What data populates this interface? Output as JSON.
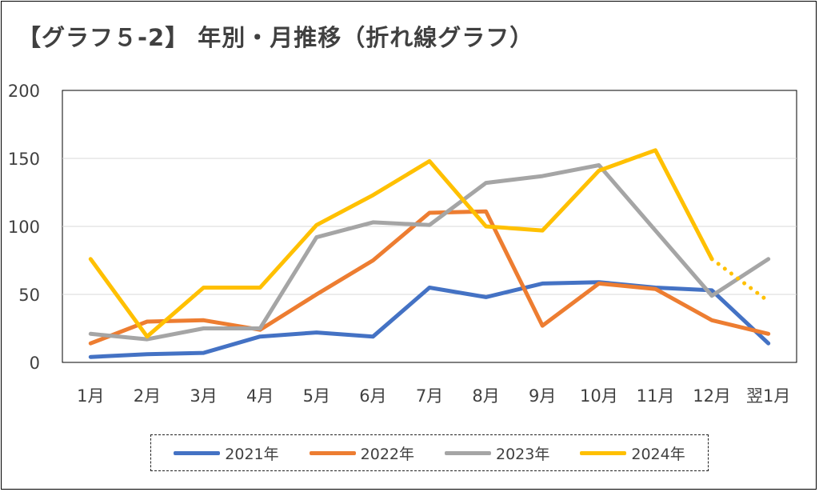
{
  "chart_data": {
    "type": "line",
    "title": "【グラフ５-2】 年別・月推移（折れ線グラフ）",
    "categories": [
      "1月",
      "2月",
      "3月",
      "4月",
      "5月",
      "6月",
      "7月",
      "8月",
      "9月",
      "10月",
      "11月",
      "12月",
      "翌1月"
    ],
    "yticks": [
      "0",
      "50",
      "100",
      "150",
      "200"
    ],
    "ylim": [
      0,
      200
    ],
    "grid": true,
    "legend": "bottom",
    "series": [
      {
        "name": "2021年",
        "color": "#4472C4",
        "values": [
          4,
          6,
          7,
          19,
          22,
          19,
          55,
          48,
          58,
          59,
          55,
          53,
          14
        ]
      },
      {
        "name": "2022年",
        "color": "#ED7D31",
        "values": [
          14,
          30,
          31,
          24,
          50,
          75,
          110,
          111,
          27,
          58,
          54,
          31,
          21
        ]
      },
      {
        "name": "2023年",
        "color": "#A5A5A5",
        "values": [
          21,
          17,
          25,
          25,
          92,
          103,
          101,
          132,
          137,
          145,
          97,
          49,
          76
        ]
      },
      {
        "name": "2024年",
        "color": "#FFC000",
        "values": [
          76,
          19,
          55,
          55,
          101,
          123,
          148,
          100,
          97,
          141,
          156,
          76,
          45
        ],
        "dotted_last_segment": true
      }
    ]
  }
}
